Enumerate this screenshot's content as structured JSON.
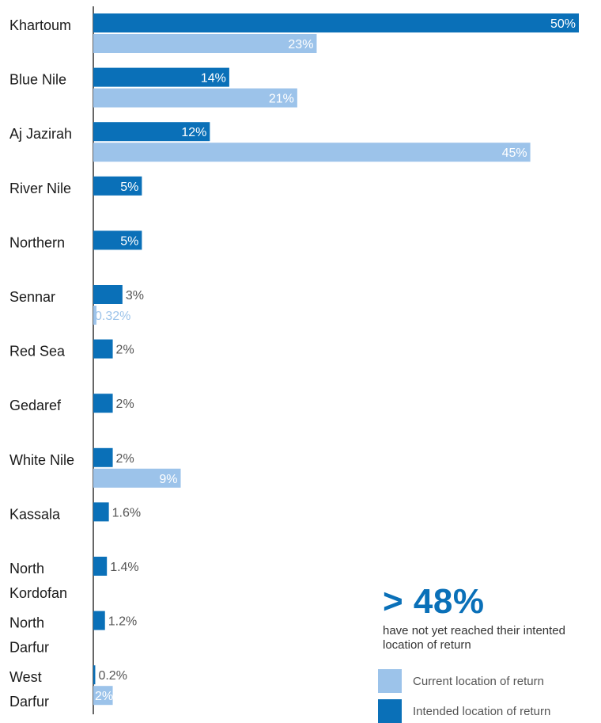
{
  "colors": {
    "current": "#9cc3ea",
    "intended": "#0a70b8"
  },
  "chart_data": {
    "type": "bar",
    "orientation": "horizontal",
    "categories": [
      "Khartoum",
      "Blue Nile",
      "Aj Jazirah",
      "River Nile",
      "Northern",
      "Sennar",
      "Red Sea",
      "Gedaref",
      "White Nile",
      "Kassala",
      "North Kordofan",
      "North Darfur",
      "West Darfur"
    ],
    "category_lines": [
      [
        "Khartoum"
      ],
      [
        "Blue Nile"
      ],
      [
        "Aj Jazirah"
      ],
      [
        "River Nile"
      ],
      [
        "Northern"
      ],
      [
        "Sennar"
      ],
      [
        "Red Sea"
      ],
      [
        "Gedaref"
      ],
      [
        "White Nile"
      ],
      [
        "Kassala"
      ],
      [
        "North",
        "Kordofan"
      ],
      [
        "North",
        "Darfur"
      ],
      [
        "West",
        "Darfur"
      ]
    ],
    "series": [
      {
        "name": "Intended location of return",
        "color": "#0a70b8",
        "values": [
          50,
          14,
          12,
          5,
          5,
          3,
          2,
          2,
          2,
          1.6,
          1.4,
          1.2,
          0.2
        ],
        "labels": [
          "50%",
          "14%",
          "12%",
          "5%",
          "5%",
          "3%",
          "2%",
          "2%",
          "2%",
          "1.6%",
          "1.4%",
          "1.2%",
          "0.2%"
        ]
      },
      {
        "name": "Current location of return",
        "color": "#9cc3ea",
        "values": [
          23,
          21,
          45,
          null,
          null,
          0.32,
          null,
          null,
          9,
          null,
          null,
          null,
          2
        ],
        "labels": [
          "23%",
          "21%",
          "45%",
          null,
          null,
          "0.32%",
          null,
          null,
          "9%",
          null,
          null,
          null,
          "2%"
        ]
      }
    ],
    "xlim": [
      0,
      50
    ],
    "legend": "bottom-right",
    "grid": false
  },
  "callout": {
    "headline": "> 48%",
    "text": "have not yet reached their intented location of return"
  },
  "legend": {
    "current": "Current location of return",
    "intended": "Intended location of return"
  }
}
